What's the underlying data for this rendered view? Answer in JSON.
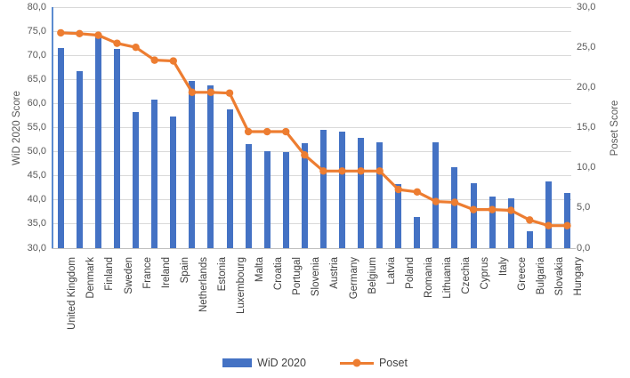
{
  "chart_data": {
    "type": "combo-bar-line",
    "categories": [
      "United Kingdom",
      "Denmark",
      "Finland",
      "Sweden",
      "France",
      "Ireland",
      "Spain",
      "Netherlands",
      "Estonia",
      "Luxembourg",
      "Malta",
      "Croatia",
      "Portugal",
      "Slovenia",
      "Austria",
      "Germany",
      "Belgium",
      "Latvia",
      "Poland",
      "Romania",
      "Lithuania",
      "Czechia",
      "Cyprus",
      "Italy",
      "Greece",
      "Bulgaria",
      "Slovakia",
      "Hungary"
    ],
    "series": [
      {
        "name": "WiD 2020",
        "type": "bar",
        "axis": "left",
        "color": "#4472C4",
        "values": [
          71.6,
          66.8,
          74.3,
          71.3,
          58.3,
          60.9,
          57.4,
          64.7,
          63.8,
          58.8,
          51.5,
          50.1,
          49.9,
          51.7,
          54.6,
          54.1,
          52.8,
          51.9,
          43.3,
          36.4,
          51.9,
          46.8,
          43.5,
          40.7,
          40.3,
          33.6,
          43.9,
          41.4
        ]
      },
      {
        "name": "Poset",
        "type": "line",
        "axis": "right",
        "color": "#ED7D31",
        "values": [
          26.8,
          26.7,
          26.5,
          25.5,
          25.0,
          23.4,
          23.3,
          19.4,
          19.4,
          19.3,
          14.5,
          14.5,
          14.5,
          11.6,
          9.6,
          9.6,
          9.6,
          9.6,
          7.3,
          7.0,
          5.8,
          5.7,
          4.8,
          4.8,
          4.7,
          3.5,
          2.8,
          2.8
        ]
      }
    ],
    "left_axis": {
      "title": "WiD 2020 Score",
      "min": 30,
      "max": 80,
      "step": 5,
      "tick_labels": [
        "80,0",
        "75,0",
        "70,0",
        "65,0",
        "60,0",
        "55,0",
        "50,0",
        "45,0",
        "40,0",
        "35,0",
        "30,0"
      ]
    },
    "right_axis": {
      "title": "Poset Score",
      "min": 0,
      "max": 30,
      "step": 5,
      "tick_labels": [
        "30,0",
        "25,0",
        "20,0",
        "15,0",
        "10,0",
        "5,0",
        "0,0"
      ]
    },
    "legend": {
      "position": "bottom",
      "entries": [
        "WiD 2020",
        "Poset"
      ]
    },
    "grid": "horizontal",
    "colors": {
      "bar": "#4472C4",
      "line": "#ED7D31",
      "gridline": "#d9d9d9",
      "tick_text": "#595959",
      "label_text": "#404040"
    }
  }
}
